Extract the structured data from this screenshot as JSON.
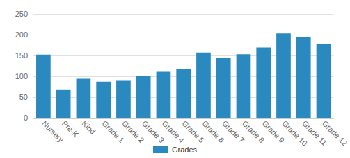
{
  "chart_data": {
    "type": "bar",
    "categories": [
      "Nursery",
      "Pre-K",
      "Kind",
      "Grade 1",
      "Grade 2",
      "Grade 3",
      "Grade 4",
      "Grade 5",
      "Grade 6",
      "Grade 7",
      "Grade 8",
      "Grade 9",
      "Grade 10",
      "Grade 11",
      "Grade 12"
    ],
    "series": [
      {
        "name": "Grades",
        "color": "#2a8abf",
        "values": [
          152,
          67,
          94,
          87,
          89,
          100,
          111,
          118,
          157,
          144,
          153,
          169,
          203,
          195,
          178
        ]
      }
    ],
    "ylim": [
      0,
      250
    ],
    "yticks": [
      0,
      50,
      100,
      150,
      200,
      250
    ],
    "grid": true,
    "legend": "bottom"
  }
}
